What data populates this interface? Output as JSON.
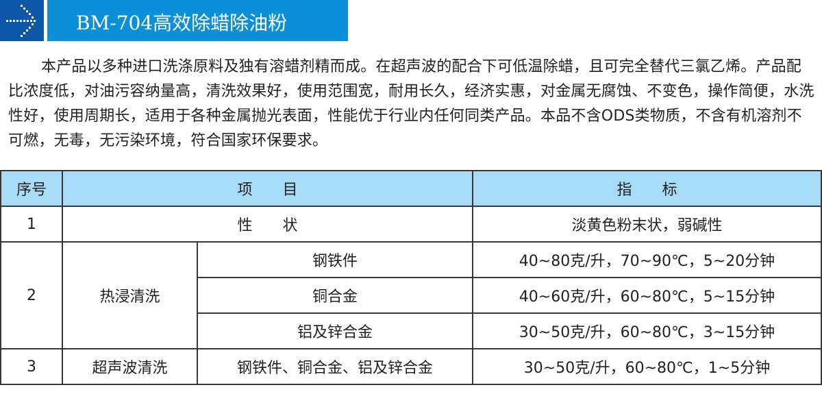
{
  "header": {
    "title": "BM-704高效除蜡除油粉",
    "icon": "dotted-arrow-right-icon",
    "colors": {
      "icon_bg": "#0d57a8",
      "bar_bg": "#0b8fd9",
      "table_header_bg": "#a6dcf5"
    }
  },
  "intro": "本产品以多种进口洗涤原料及独有溶蜡剂精而成。在超声波的配合下可低温除蜡，且可完全替代三氯乙烯。产品配比浓度低，对油污容纳量高，清洗效果好，使用范围宽，耐用长久，经济实惠，对金属无腐蚀、不变色，操作简便，水洗性好，使用周期长，适用于各种金属抛光表面，性能优于行业内任何同类产品。本品不含ODS类物质，不含有机溶剂不可燃，无毒，无污染环境，符合国家环保要求。",
  "table": {
    "headers": [
      "序号",
      "项　　目",
      "指　　标"
    ],
    "rows": [
      {
        "no": "1",
        "item": "性　　状",
        "spec": "淡黄色粉末状，弱碱性"
      },
      {
        "no": "2",
        "item": "热浸清洗",
        "subs": [
          {
            "sub": "钢铁件",
            "spec": "40~80克/升，70~90℃，5~20分钟"
          },
          {
            "sub": "铜合金",
            "spec": "40~60克/升，60~80℃，5~15分钟"
          },
          {
            "sub": "铝及锌合金",
            "spec": "30~50克/升，60~80℃，3~15分钟"
          }
        ]
      },
      {
        "no": "3",
        "item": "超声波清洗",
        "sub": "钢铁件、铜合金、铝及锌合金",
        "spec": "30~50克/升，60~80℃，1~5分钟"
      }
    ]
  }
}
